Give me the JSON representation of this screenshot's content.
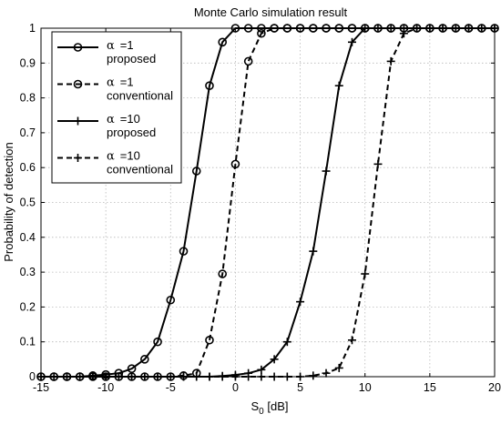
{
  "chart_data": {
    "type": "line",
    "title": "Monte Carlo simulation result",
    "xlabel_main": "S",
    "xlabel_sub": "0",
    "xlabel_rest": " [dB]",
    "ylabel": "Probability of detection",
    "xlim": [
      -15,
      20
    ],
    "ylim": [
      0,
      1
    ],
    "xticks": [
      -15,
      -10,
      -5,
      0,
      5,
      10,
      15,
      20
    ],
    "xtick_labels": [
      "-15",
      "-10",
      "-5",
      "0",
      "5",
      "10",
      "15",
      "20"
    ],
    "yticks": [
      0,
      0.1,
      0.2,
      0.3,
      0.4,
      0.5,
      0.6,
      0.7,
      0.8,
      0.9,
      1
    ],
    "ytick_labels": [
      "0",
      "0.1",
      "0.2",
      "0.3",
      "0.4",
      "0.5",
      "0.6",
      "0.7",
      "0.8",
      "0.9",
      "1"
    ],
    "grid": true,
    "legend_position": "top-left",
    "series": [
      {
        "name_symbol": "α",
        "name_value": "=1",
        "name_line2": "proposed",
        "line_style": "solid",
        "marker": "circle",
        "color": "#000000",
        "x": [
          -15,
          -14,
          -13,
          -12,
          -11,
          -10,
          -9,
          -8,
          -7,
          -6,
          -5,
          -4,
          -3,
          -2,
          -1,
          0,
          1,
          2,
          3,
          4,
          5,
          6,
          7,
          8,
          9,
          10,
          11,
          12,
          13,
          14,
          15,
          16,
          17,
          18,
          19,
          20
        ],
        "y": [
          0,
          0,
          0,
          0,
          0.003,
          0.006,
          0.01,
          0.023,
          0.05,
          0.1,
          0.22,
          0.36,
          0.59,
          0.835,
          0.96,
          1,
          1,
          1,
          1,
          1,
          1,
          1,
          1,
          1,
          1,
          1,
          1,
          1,
          1,
          1,
          1,
          1,
          1,
          1,
          1,
          1
        ]
      },
      {
        "name_symbol": "α",
        "name_value": "=1",
        "name_line2": "conventional",
        "line_style": "dashed",
        "marker": "circle",
        "color": "#000000",
        "x": [
          -15,
          -14,
          -13,
          -12,
          -11,
          -10,
          -9,
          -8,
          -7,
          -6,
          -5,
          -4,
          -3,
          -2,
          -1,
          0,
          1,
          2,
          3,
          4,
          5,
          6,
          7,
          8,
          9,
          10,
          11,
          12,
          13,
          14,
          15,
          16,
          17,
          18,
          19,
          20
        ],
        "y": [
          0,
          0,
          0,
          0,
          0,
          0,
          0,
          0,
          0,
          0,
          0,
          0.003,
          0.01,
          0.105,
          0.295,
          0.61,
          0.905,
          0.985,
          1,
          1,
          1,
          1,
          1,
          1,
          1,
          1,
          1,
          1,
          1,
          1,
          1,
          1,
          1,
          1,
          1,
          1
        ]
      },
      {
        "name_symbol": "α",
        "name_value": "=10",
        "name_line2": "proposed",
        "line_style": "solid",
        "marker": "plus",
        "color": "#000000",
        "x": [
          -15,
          -14,
          -13,
          -12,
          -11,
          -10,
          -9,
          -8,
          -7,
          -6,
          -5,
          -4,
          -3,
          -2,
          -1,
          0,
          1,
          2,
          3,
          4,
          5,
          6,
          7,
          8,
          9,
          10,
          11,
          12,
          13,
          14,
          15,
          16,
          17,
          18,
          19,
          20
        ],
        "y": [
          0,
          0,
          0,
          0,
          0,
          0,
          0,
          0,
          0,
          0,
          0,
          0,
          0,
          0,
          0.002,
          0.005,
          0.01,
          0.02,
          0.05,
          0.1,
          0.215,
          0.36,
          0.59,
          0.835,
          0.96,
          1,
          1,
          1,
          1,
          1,
          1,
          1,
          1,
          1,
          1,
          1
        ]
      },
      {
        "name_symbol": "α",
        "name_value": "=10",
        "name_line2": "conventional",
        "line_style": "dashed",
        "marker": "plus",
        "color": "#000000",
        "x": [
          -15,
          -14,
          -13,
          -12,
          -11,
          -10,
          -9,
          -8,
          -7,
          -6,
          -5,
          -4,
          -3,
          -2,
          -1,
          0,
          1,
          2,
          3,
          4,
          5,
          6,
          7,
          8,
          9,
          10,
          11,
          12,
          13,
          14,
          15,
          16,
          17,
          18,
          19,
          20
        ],
        "y": [
          0,
          0,
          0,
          0,
          0,
          0,
          0,
          0,
          0,
          0,
          0,
          0,
          0,
          0,
          0,
          0,
          0,
          0,
          0,
          0,
          0,
          0.003,
          0.01,
          0.025,
          0.105,
          0.295,
          0.61,
          0.905,
          0.985,
          1,
          1,
          1,
          1,
          1,
          1,
          1
        ]
      }
    ]
  }
}
